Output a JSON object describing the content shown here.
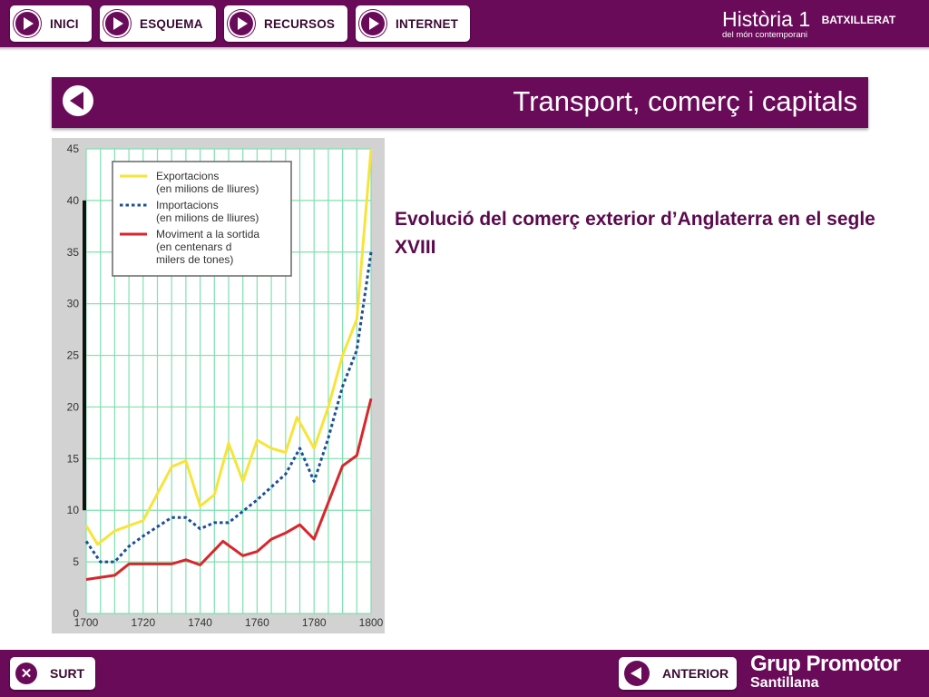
{
  "nav": {
    "buttons": [
      {
        "label": "INICI"
      },
      {
        "label": "ESQUEMA"
      },
      {
        "label": "RECURSOS"
      },
      {
        "label": "INTERNET"
      }
    ]
  },
  "brand": {
    "title": "Història 1",
    "level": "BATXILLERAT",
    "subtitle": "del món contemporani"
  },
  "page": {
    "title": "Transport, comerç i capitals",
    "heading": "Evolució del comerç exterior d’Anglaterra en el segle XVIII"
  },
  "footer": {
    "exit_label": "SURT",
    "prev_label": "ANTERIOR",
    "logo_line1": "Grup Promotor",
    "logo_line2": "Santillana"
  },
  "colors": {
    "brand": "#6a0b5a",
    "exports": "#f7e43a",
    "imports": "#1f4e9a",
    "shipping": "#d9262c",
    "grid": "#7fe0b0"
  },
  "chart_data": {
    "type": "line",
    "xlim": [
      1700,
      1800
    ],
    "ylim": [
      0,
      45
    ],
    "x_ticks": [
      "1700",
      "1720",
      "1740",
      "1760",
      "1780",
      "1800"
    ],
    "y_ticks": [
      "0",
      "5",
      "10",
      "15",
      "20",
      "25",
      "30",
      "35",
      "40",
      "45"
    ],
    "grid": true,
    "legend_position": "top-left",
    "series": [
      {
        "name": "Exportacions",
        "name_note": "(en milions de lliures)",
        "style": "solid",
        "color": "#f7e43a",
        "points": [
          [
            1700,
            8.5
          ],
          [
            1704,
            6.7
          ],
          [
            1710,
            8.0
          ],
          [
            1720,
            9.0
          ],
          [
            1730,
            14.2
          ],
          [
            1735,
            14.8
          ],
          [
            1740,
            10.4
          ],
          [
            1745,
            11.5
          ],
          [
            1750,
            16.5
          ],
          [
            1755,
            12.8
          ],
          [
            1760,
            16.8
          ],
          [
            1765,
            16.0
          ],
          [
            1770,
            15.6
          ],
          [
            1774,
            19.0
          ],
          [
            1780,
            16.0
          ],
          [
            1785,
            20.0
          ],
          [
            1790,
            25.0
          ],
          [
            1795,
            28.5
          ],
          [
            1800,
            45.0
          ]
        ]
      },
      {
        "name": "Importacions",
        "name_note": "(en milions de lliures)",
        "style": "dotted",
        "color": "#1f4e9a",
        "points": [
          [
            1700,
            7.0
          ],
          [
            1705,
            5.0
          ],
          [
            1710,
            5.0
          ],
          [
            1715,
            6.5
          ],
          [
            1720,
            7.5
          ],
          [
            1730,
            9.3
          ],
          [
            1735,
            9.3
          ],
          [
            1740,
            8.2
          ],
          [
            1745,
            8.8
          ],
          [
            1750,
            8.8
          ],
          [
            1760,
            11.0
          ],
          [
            1770,
            13.5
          ],
          [
            1775,
            16.0
          ],
          [
            1780,
            12.8
          ],
          [
            1785,
            17.0
          ],
          [
            1790,
            22.0
          ],
          [
            1795,
            25.5
          ],
          [
            1800,
            35.0
          ]
        ]
      },
      {
        "name": "Moviment a la sortida",
        "name_note": "(en centenars de milers de tones)",
        "style": "solid",
        "color": "#d9262c",
        "points": [
          [
            1700,
            3.3
          ],
          [
            1710,
            3.7
          ],
          [
            1715,
            4.8
          ],
          [
            1730,
            4.8
          ],
          [
            1735,
            5.2
          ],
          [
            1740,
            4.7
          ],
          [
            1748,
            7.0
          ],
          [
            1755,
            5.6
          ],
          [
            1760,
            6.0
          ],
          [
            1765,
            7.2
          ],
          [
            1770,
            7.8
          ],
          [
            1775,
            8.6
          ],
          [
            1780,
            7.2
          ],
          [
            1790,
            14.3
          ],
          [
            1795,
            15.3
          ],
          [
            1800,
            20.8
          ]
        ]
      }
    ]
  }
}
